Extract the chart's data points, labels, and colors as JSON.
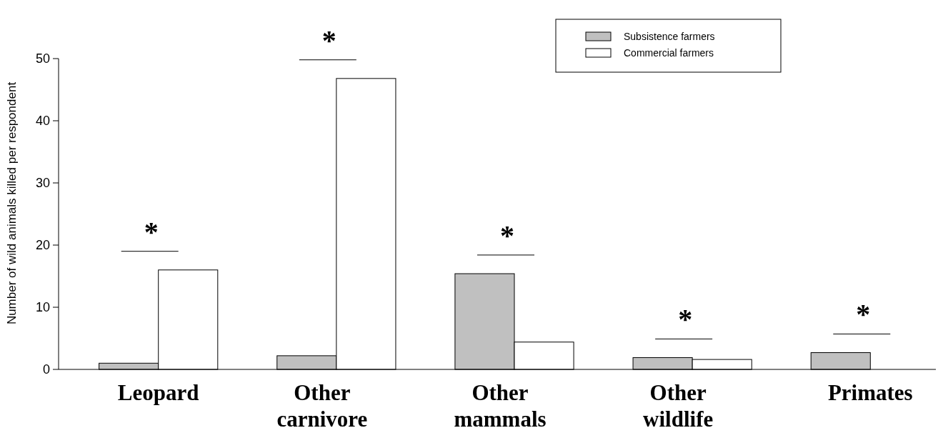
{
  "chart_data": {
    "type": "bar",
    "ylabel": "Number of wild animals killed per respondent",
    "categories": [
      "Leopard",
      "Other carnivore",
      "Other mammals",
      "Other wildlife",
      "Primates"
    ],
    "series": [
      {
        "name": "Subsistence farmers",
        "color": "#c0c0c0",
        "values": [
          1.0,
          2.2,
          15.4,
          1.9,
          2.7
        ]
      },
      {
        "name": "Commercial farmers",
        "color": "#ffffff",
        "values": [
          16.0,
          46.8,
          4.4,
          1.6,
          0
        ]
      }
    ],
    "ylim": [
      0,
      50
    ],
    "yticks": [
      0,
      10,
      20,
      30,
      40,
      50
    ],
    "legend": "top right",
    "grid": false,
    "annotations": [
      "*",
      "*",
      "*",
      "*",
      "*"
    ]
  }
}
